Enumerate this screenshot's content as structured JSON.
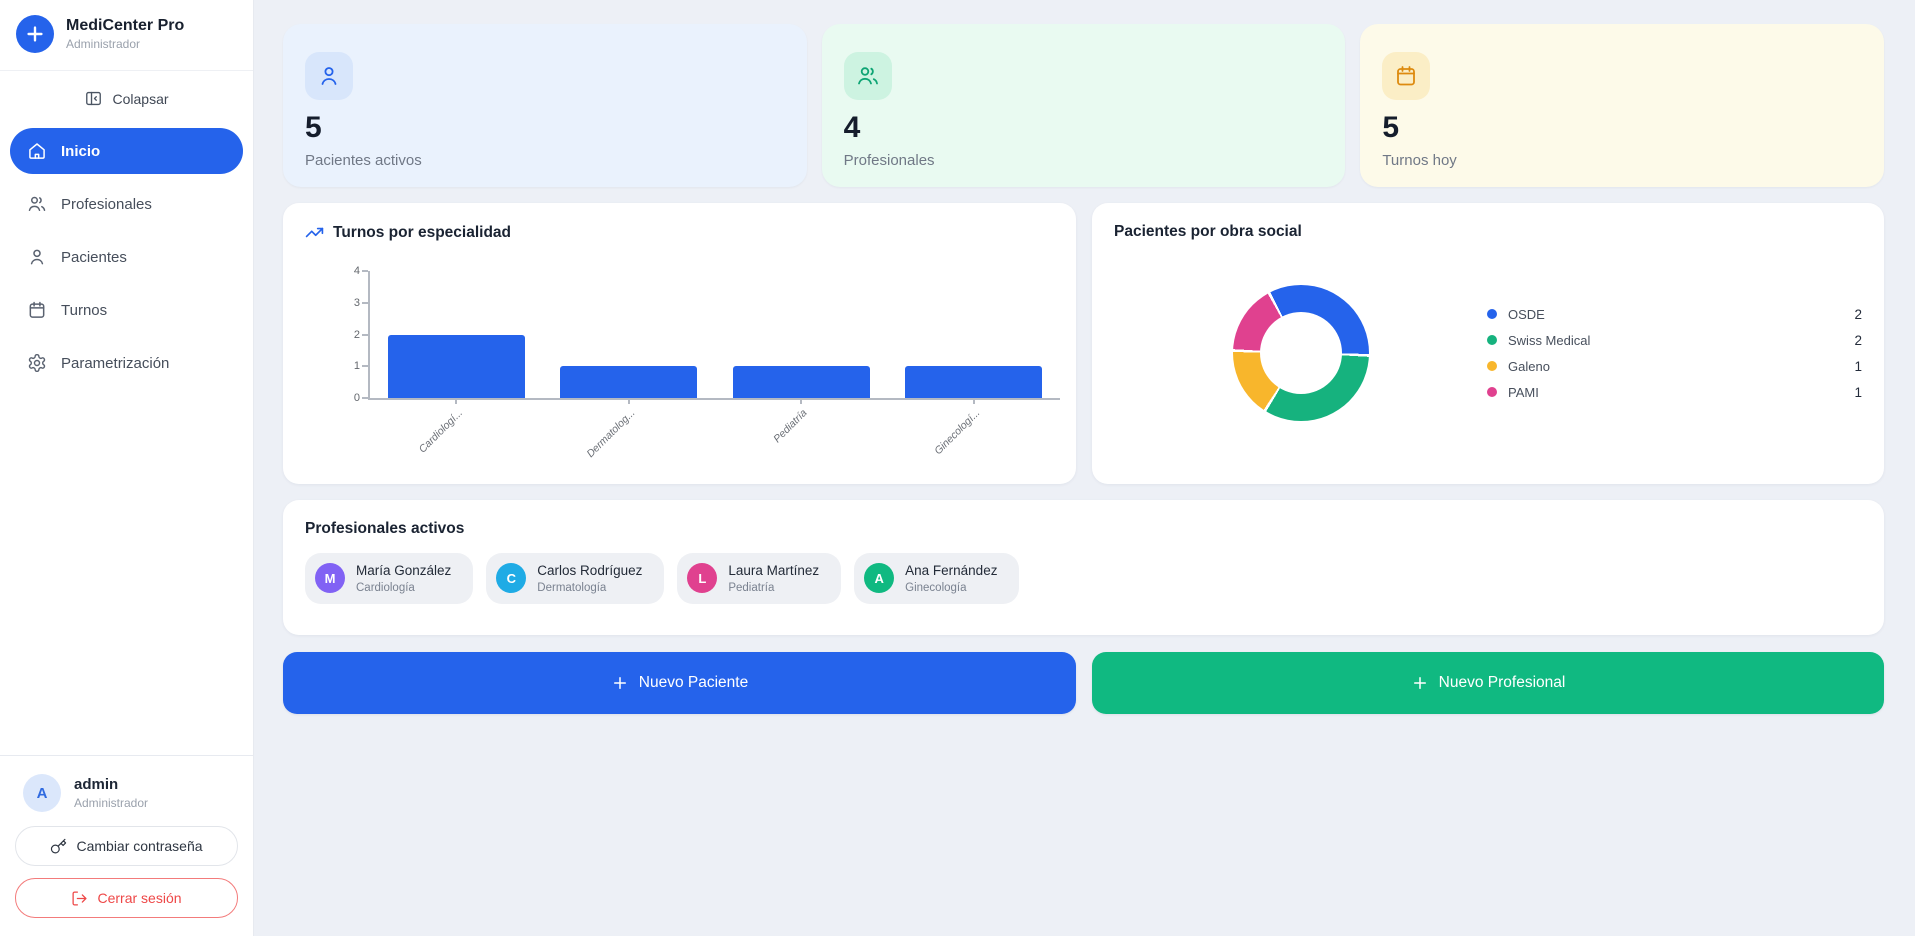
{
  "sidebar": {
    "app_name": "MediCenter Pro",
    "app_subtitle": "Administrador",
    "collapse_label": "Colapsar",
    "nav": [
      {
        "id": "inicio",
        "label": "Inicio",
        "icon": "home",
        "active": true
      },
      {
        "id": "profesionales",
        "label": "Profesionales",
        "icon": "users",
        "active": false
      },
      {
        "id": "pacientes",
        "label": "Pacientes",
        "icon": "user",
        "active": false
      },
      {
        "id": "turnos",
        "label": "Turnos",
        "icon": "calendar",
        "active": false
      },
      {
        "id": "parametrizacion",
        "label": "Parametrización",
        "icon": "gear",
        "active": false
      }
    ],
    "user": {
      "initial": "A",
      "name": "admin",
      "role": "Administrador"
    },
    "change_password_label": "Cambiar contraseña",
    "logout_label": "Cerrar sesión"
  },
  "stats": [
    {
      "icon": "user",
      "value": "5",
      "label": "Pacientes activos",
      "bg": "#eaf2fd",
      "tile_bg": "#d8e6fb",
      "icon_color": "#2563eb"
    },
    {
      "icon": "users",
      "value": "4",
      "label": "Profesionales",
      "bg": "#e9faf1",
      "tile_bg": "#cdf3e1",
      "icon_color": "#0ea474"
    },
    {
      "icon": "calendar",
      "value": "5",
      "label": "Turnos hoy",
      "bg": "#fdfae9",
      "tile_bg": "#fbeec6",
      "icon_color": "#dd8a0e"
    }
  ],
  "chart_data": [
    {
      "type": "bar",
      "title": "Turnos por especialidad",
      "categories": [
        "Cardiologí...",
        "Dermatolog...",
        "Pediatría",
        "Ginecologí..."
      ],
      "values": [
        2,
        1,
        1,
        1
      ],
      "xlabel": "",
      "ylabel": "",
      "ylim": [
        0,
        4
      ],
      "yticks": [
        0,
        1,
        2,
        3,
        4
      ],
      "grid": false,
      "bar_color": "#2563eb"
    },
    {
      "type": "pie",
      "title": "Pacientes por obra social",
      "labels": [
        "OSDE",
        "Swiss Medical",
        "Galeno",
        "PAMI"
      ],
      "values": [
        2,
        2,
        1,
        1
      ],
      "colors": [
        "#2563eb",
        "#16b27e",
        "#f8b62c",
        "#e0418f"
      ],
      "donut": true,
      "cutout_ratio": 0.6,
      "start_angle": -28,
      "legend_position": "right"
    }
  ],
  "professionals": {
    "title": "Profesionales activos",
    "items": [
      {
        "initial": "M",
        "name": "María González",
        "specialty": "Cardiología",
        "color": "#8162f4"
      },
      {
        "initial": "C",
        "name": "Carlos Rodríguez",
        "specialty": "Dermatología",
        "color": "#1fabe5"
      },
      {
        "initial": "L",
        "name": "Laura Martínez",
        "specialty": "Pediatría",
        "color": "#e0418f"
      },
      {
        "initial": "A",
        "name": "Ana Fernández",
        "specialty": "Ginecología",
        "color": "#10b981"
      }
    ]
  },
  "actions": {
    "new_patient_label": "Nuevo Paciente",
    "new_professional_label": "Nuevo Profesional"
  },
  "colors": {
    "accent_blue": "#2563eb",
    "accent_green": "#10b981",
    "accent_yellow": "#f8b62c",
    "accent_pink": "#e0418f",
    "logout_red": "#ee4747"
  }
}
